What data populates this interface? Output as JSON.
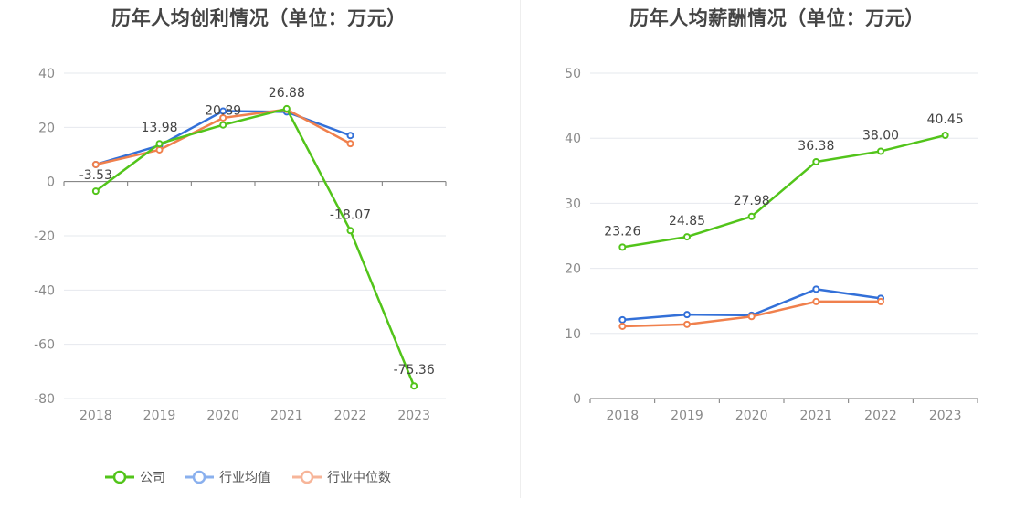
{
  "chart_data": [
    {
      "type": "line",
      "title": "历年人均创利情况（单位：万元）",
      "categories": [
        "2018",
        "2019",
        "2020",
        "2021",
        "2022",
        "2023"
      ],
      "ylim": [
        -80,
        40
      ],
      "yticks": [
        40,
        20,
        0,
        -20,
        -40,
        -60,
        -80
      ],
      "grid": true,
      "legend_position": "bottom",
      "series": [
        {
          "name": "公司",
          "color": "#52c41a",
          "values": [
            -3.53,
            13.98,
            20.89,
            26.88,
            -18.07,
            -75.36
          ],
          "labels": [
            "-3.53",
            "13.98",
            "20.89",
            "26.88",
            "-18.07",
            "-75.36"
          ]
        },
        {
          "name": "行业均值",
          "color": "#3370d8",
          "values": [
            6.3,
            13.3,
            26.0,
            25.7,
            17.0,
            null
          ]
        },
        {
          "name": "行业中位数",
          "color": "#f0804d",
          "values": [
            6.3,
            11.7,
            23.5,
            26.6,
            14.0,
            null
          ]
        }
      ]
    },
    {
      "type": "line",
      "title": "历年人均薪酬情况（单位：万元）",
      "categories": [
        "2018",
        "2019",
        "2020",
        "2021",
        "2022",
        "2023"
      ],
      "ylim": [
        0,
        50
      ],
      "yticks": [
        50,
        40,
        30,
        20,
        10,
        0
      ],
      "grid": true,
      "legend_position": "bottom",
      "series": [
        {
          "name": "公司",
          "color": "#52c41a",
          "values": [
            23.26,
            24.85,
            27.98,
            36.38,
            38.0,
            40.45
          ],
          "labels": [
            "23.26",
            "24.85",
            "27.98",
            "36.38",
            "38.00",
            "40.45"
          ]
        },
        {
          "name": "行业均值",
          "color": "#3370d8",
          "values": [
            12.1,
            12.9,
            12.8,
            16.8,
            15.4,
            null
          ]
        },
        {
          "name": "行业中位数",
          "color": "#f0804d",
          "values": [
            11.1,
            11.4,
            12.6,
            14.9,
            14.9,
            null
          ]
        }
      ]
    }
  ]
}
